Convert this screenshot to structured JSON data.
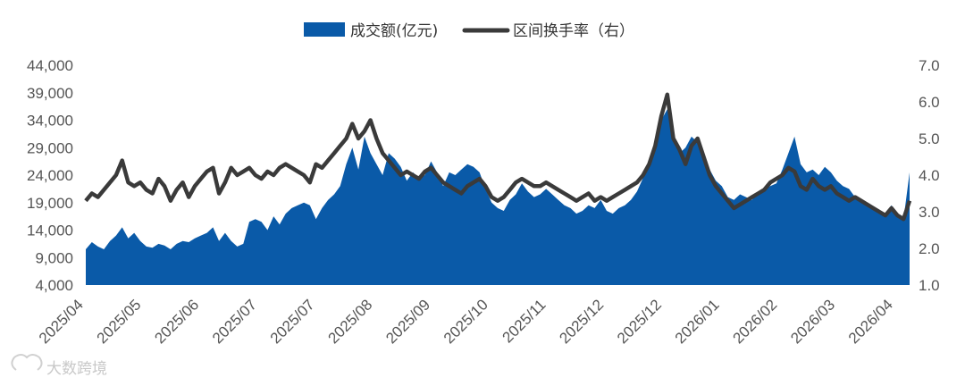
{
  "chart_data": {
    "type": "area",
    "legend": {
      "placement": "top-center",
      "area_label": "成交额(亿元)",
      "line_label": "区间换手率（右）"
    },
    "colors": {
      "area": "#0a5aa8",
      "line": "#3a3a3a"
    },
    "left_axis": {
      "ticks": [
        "4,000",
        "9,000",
        "14,000",
        "19,000",
        "24,000",
        "29,000",
        "34,000",
        "39,000",
        "44,000"
      ],
      "ylim": [
        4000,
        44000
      ]
    },
    "right_axis": {
      "ticks": [
        "1.0",
        "2.0",
        "3.0",
        "4.0",
        "5.0",
        "6.0",
        "7.0"
      ],
      "ylim": [
        1.0,
        7.0
      ]
    },
    "x_ticks": [
      "2025/04",
      "2025/05",
      "2025/06",
      "2025/07",
      "2025/07",
      "2025/08",
      "2025/09",
      "2025/10",
      "2025/11",
      "2025/12",
      "2025/12",
      "2026/01",
      "2026/02",
      "2026/03",
      "2026/04"
    ],
    "series": [
      {
        "name": "成交额(亿元)",
        "axis": "left",
        "values": [
          10500,
          11800,
          11000,
          10500,
          12000,
          13000,
          14500,
          12500,
          13500,
          12000,
          11000,
          10800,
          11500,
          11200,
          10500,
          11500,
          12000,
          11800,
          12500,
          13000,
          13500,
          14500,
          12000,
          13500,
          12000,
          11000,
          11500,
          15500,
          16000,
          15500,
          14000,
          16500,
          15000,
          17000,
          18000,
          18500,
          19000,
          18500,
          16000,
          18000,
          19500,
          20500,
          22000,
          26000,
          29000,
          25000,
          31000,
          28000,
          26000,
          24000,
          28000,
          27000,
          25500,
          23000,
          24500,
          23500,
          24000,
          26500,
          24500,
          22000,
          24500,
          24000,
          25000,
          26000,
          25500,
          24500,
          21500,
          19000,
          18000,
          17500,
          19500,
          20500,
          22500,
          21000,
          20000,
          20500,
          21500,
          20500,
          19500,
          18500,
          18000,
          17000,
          17500,
          18500,
          18000,
          19500,
          17500,
          17000,
          18000,
          18500,
          19500,
          21000,
          23500,
          26000,
          30000,
          34000,
          36000,
          31000,
          28000,
          29000,
          31000,
          30000,
          27000,
          25000,
          23000,
          22000,
          20000,
          19500,
          20500,
          20000,
          19500,
          21000,
          21500,
          22000,
          22500,
          25000,
          28000,
          31000,
          26000,
          24500,
          25000,
          24000,
          25500,
          24500,
          23000,
          22000,
          21500,
          20000,
          19000,
          18500,
          18000,
          17500,
          17000,
          18500,
          17000,
          16000,
          24500
        ]
      },
      {
        "name": "区间换手率（右）",
        "axis": "right",
        "values": [
          3.3,
          3.5,
          3.4,
          3.6,
          3.8,
          4.0,
          4.4,
          3.8,
          3.7,
          3.8,
          3.6,
          3.5,
          3.9,
          3.7,
          3.3,
          3.6,
          3.8,
          3.4,
          3.7,
          3.9,
          4.1,
          4.2,
          3.5,
          3.8,
          4.2,
          4.0,
          4.1,
          4.2,
          4.0,
          3.9,
          4.1,
          4.0,
          4.2,
          4.3,
          4.2,
          4.1,
          4.0,
          3.8,
          4.3,
          4.2,
          4.4,
          4.6,
          4.8,
          5.0,
          5.4,
          5.0,
          5.2,
          5.5,
          5.0,
          4.6,
          4.4,
          4.2,
          4.0,
          4.1,
          4.0,
          3.9,
          4.1,
          4.2,
          4.0,
          3.8,
          3.7,
          3.6,
          3.5,
          3.7,
          3.8,
          3.9,
          3.7,
          3.4,
          3.3,
          3.4,
          3.6,
          3.8,
          3.9,
          3.8,
          3.7,
          3.7,
          3.8,
          3.7,
          3.6,
          3.5,
          3.4,
          3.3,
          3.4,
          3.5,
          3.3,
          3.4,
          3.3,
          3.4,
          3.5,
          3.6,
          3.7,
          3.8,
          4.0,
          4.3,
          4.8,
          5.6,
          6.2,
          5.0,
          4.7,
          4.3,
          4.8,
          5.0,
          4.5,
          4.0,
          3.7,
          3.5,
          3.3,
          3.1,
          3.2,
          3.3,
          3.4,
          3.5,
          3.6,
          3.8,
          3.9,
          4.0,
          4.2,
          4.1,
          3.7,
          3.6,
          3.9,
          3.7,
          3.6,
          3.7,
          3.5,
          3.4,
          3.3,
          3.4,
          3.3,
          3.2,
          3.1,
          3.0,
          2.9,
          3.1,
          2.9,
          2.8,
          3.3
        ]
      }
    ]
  }
}
